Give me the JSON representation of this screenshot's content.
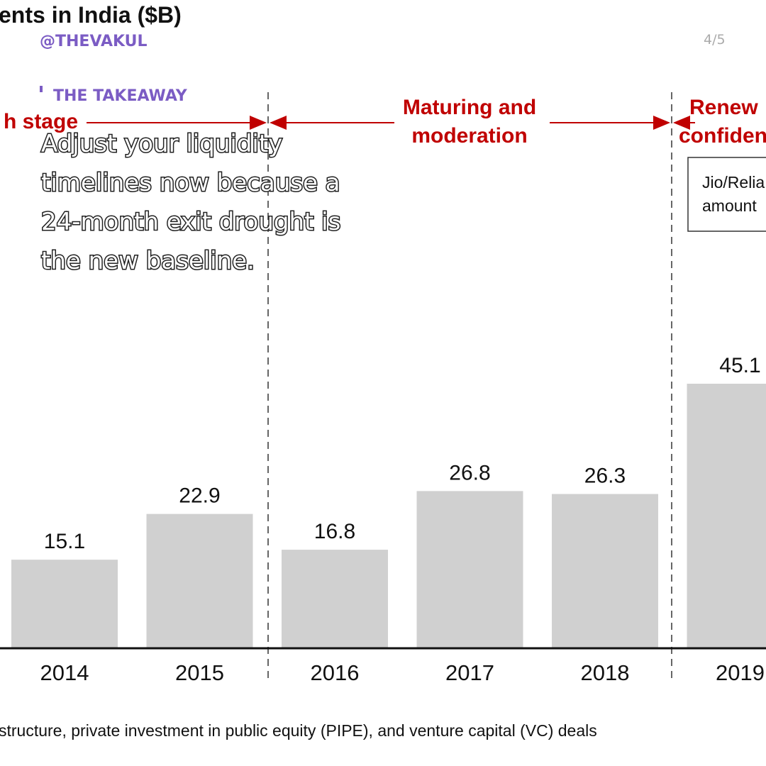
{
  "handle": "@THEVAKUL",
  "page_indicator": "4/5",
  "takeaway": {
    "heading": "THE TAKEAWAY",
    "lines": [
      "Adjust your liquidity",
      "timelines now because a",
      "24-month exit drought is",
      "the new baseline."
    ]
  },
  "chart_data": {
    "type": "bar",
    "title": "ents in India ($B)",
    "categories": [
      "2014",
      "2015",
      "2016",
      "2017",
      "2018",
      "2019"
    ],
    "values": [
      15.1,
      22.9,
      16.8,
      26.8,
      26.3,
      45.1
    ],
    "color": "#d0d0d0",
    "phases": [
      [
        "h stage"
      ],
      [
        "Maturing and",
        "moderation"
      ],
      [
        "Renew",
        "confiden"
      ]
    ],
    "annotation": [
      "Jio/Relia",
      "amount"
    ],
    "footnote": "structure, private investment in public equity (PIPE), and venture capital (VC) deals"
  }
}
